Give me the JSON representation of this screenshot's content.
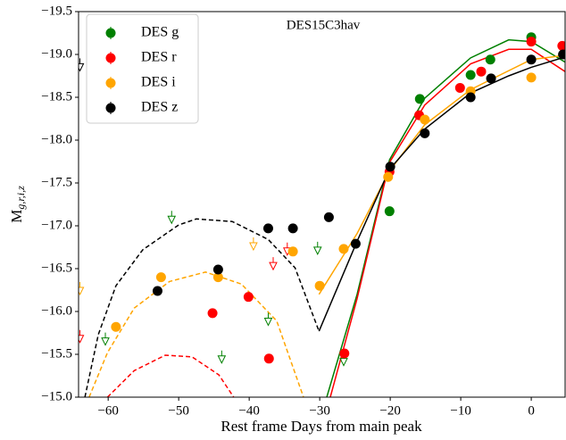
{
  "chart_data": {
    "type": "scatter",
    "annotation": "DES15C3hav",
    "x_label": "Rest frame Days from main peak",
    "y_label": {
      "main": "M",
      "sub": "g,r,i,z"
    },
    "xlim": [
      -64.2,
      4.8
    ],
    "ylim": [
      -15.0,
      -19.5
    ],
    "xticks": [
      {
        "value": -60,
        "label": "−60"
      },
      {
        "value": -50,
        "label": "−50"
      },
      {
        "value": -40,
        "label": "−40"
      },
      {
        "value": -30,
        "label": "−30"
      },
      {
        "value": -20,
        "label": "−20"
      },
      {
        "value": -10,
        "label": "−10"
      },
      0
    ],
    "yticks": [
      {
        "value": -19.5,
        "label": "−19.5"
      },
      {
        "value": -19.0,
        "label": "−19.0"
      },
      {
        "value": -18.5,
        "label": "−18.5"
      },
      {
        "value": -18.0,
        "label": "−18.0"
      },
      {
        "value": -17.5,
        "label": "−17.5"
      },
      {
        "value": -17.0,
        "label": "−17.0"
      },
      {
        "value": -16.5,
        "label": "−16.5"
      },
      {
        "value": -16.0,
        "label": "−16.0"
      },
      {
        "value": -15.5,
        "label": "−15.5"
      },
      {
        "value": -15.0,
        "label": "−15.0"
      }
    ],
    "legend": "upper left",
    "series": [
      {
        "name": "DES g",
        "color": "#008000",
        "x": [
          -20.1,
          -15.8,
          -8.6,
          -5.8,
          0
        ],
        "values": [
          -17.17,
          -18.48,
          -18.76,
          -18.94,
          -19.2
        ],
        "upper_limits": {
          "x": [
            -60.4,
            -51,
            -43.9,
            -37.3,
            -30.3,
            -26.6
          ],
          "values": [
            -15.65,
            -17.07,
            -15.44,
            -15.88,
            -16.71,
            -15.41
          ]
        },
        "fit": {
          "x": [
            -29,
            -24.7,
            -20.1,
            -15.1,
            -8.6,
            -3.2,
            0,
            4.8
          ],
          "values": [
            -15.0,
            -16.2,
            -17.77,
            -18.49,
            -18.96,
            -19.17,
            -19.15,
            -18.91
          ]
        }
      },
      {
        "name": "DES r",
        "color": "#ff0000",
        "x": [
          -45.2,
          -40.1,
          -37.2,
          -26.5,
          -20.1,
          -15.9,
          -10.1,
          -7.1,
          0,
          4.4
        ],
        "values": [
          -15.98,
          -16.17,
          -15.45,
          -15.51,
          -17.63,
          -18.29,
          -18.61,
          -18.8,
          -19.15,
          -19.1
        ],
        "upper_limits": {
          "x": [
            -64,
            -36.6,
            -34.6
          ],
          "values": [
            -15.68,
            -16.53,
            -16.7
          ]
        },
        "fit": {
          "x": [
            -28.5,
            -24.7,
            -20.1,
            -15.1,
            -8.6,
            -3.2,
            0,
            4.8
          ],
          "values": [
            -15.0,
            -16.15,
            -17.74,
            -18.41,
            -18.89,
            -19.06,
            -19.06,
            -18.8
          ]
        },
        "precursor": {
          "x": [
            -60.1,
            -56.3,
            -51.9,
            -48.1,
            -44.3,
            -42.2
          ],
          "values": [
            -15.0,
            -15.31,
            -15.49,
            -15.47,
            -15.26,
            -15.0
          ]
        }
      },
      {
        "name": "DES i",
        "color": "#ffa500",
        "x": [
          -58.9,
          -52.5,
          -44.4,
          -33.8,
          -30,
          -26.6,
          -20.3,
          -15.1,
          -8.6,
          0
        ],
        "values": [
          -15.82,
          -16.4,
          -16.4,
          -16.7,
          -16.3,
          -16.73,
          -17.57,
          -18.24,
          -18.57,
          -18.73
        ],
        "upper_limits": {
          "x": [
            -64,
            -39.4
          ],
          "values": [
            -16.24,
            -16.76
          ]
        },
        "fit": {
          "x": [
            -30.1,
            -24.7,
            -20.1,
            -15.1,
            -8.6,
            0,
            4.8
          ],
          "values": [
            -16.2,
            -16.91,
            -17.64,
            -18.18,
            -18.59,
            -18.94,
            -18.99
          ]
        },
        "precursor": {
          "x": [
            -62.7,
            -60.1,
            -56.3,
            -51.3,
            -46.2,
            -41.1,
            -36.1,
            -32.3
          ],
          "values": [
            -15.0,
            -15.52,
            -16.04,
            -16.35,
            -16.46,
            -16.32,
            -15.89,
            -15.0
          ]
        }
      },
      {
        "name": "DES z",
        "color": "#000000",
        "x": [
          -53,
          -44.4,
          -37.3,
          -33.8,
          -28.7,
          -24.9,
          -20,
          -15.1,
          -8.6,
          -5.7,
          0,
          4.5
        ],
        "values": [
          -16.24,
          -16.49,
          -16.97,
          -16.97,
          -17.1,
          -16.79,
          -17.69,
          -18.08,
          -18.5,
          -18.72,
          -18.94,
          -19.0
        ],
        "upper_limits": {
          "x": [
            -64
          ],
          "values": [
            -18.85
          ]
        },
        "fit": {
          "x": [
            -30.1,
            -24.7,
            -20.1,
            -15.1,
            -8.6,
            -3.2,
            0,
            4.8
          ],
          "values": [
            -15.77,
            -16.82,
            -17.66,
            -18.13,
            -18.55,
            -18.75,
            -18.85,
            -18.97
          ]
        },
        "precursor": {
          "x": [
            -63.3,
            -61.4,
            -58.9,
            -55.1,
            -50,
            -47.5,
            -42.4,
            -37.3,
            -33.5,
            -30.1
          ],
          "values": [
            -15.0,
            -15.73,
            -16.3,
            -16.72,
            -17.01,
            -17.08,
            -17.05,
            -16.84,
            -16.51,
            -15.77
          ]
        }
      }
    ]
  }
}
